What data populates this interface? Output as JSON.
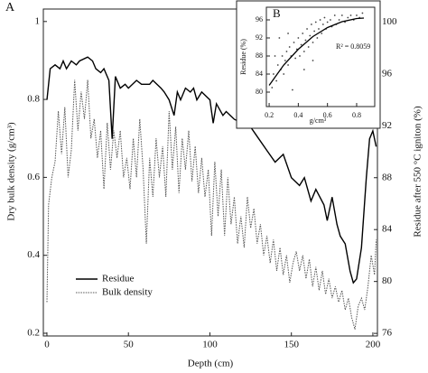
{
  "chart_data": [
    {
      "type": "line",
      "panel_label": "A",
      "xlabel": "Depth (cm)",
      "ylabel": "Dry bulk density (g/cm³)",
      "y2label": "Residue after 550 °C igniton (%)",
      "xlim": [
        -2.2,
        202.8
      ],
      "xticks": [
        0,
        50,
        100,
        150,
        200
      ],
      "ylim": [
        0.193,
        1.032
      ],
      "yticks": [
        0.2,
        0.4,
        0.6,
        0.8,
        1
      ],
      "y2lim": [
        75.8,
        101
      ],
      "y2ticks": [
        76,
        80,
        84,
        88,
        92,
        96,
        100
      ],
      "legend": "lower left",
      "series": [
        {
          "name": "Residue",
          "color": "#000000",
          "line_style": "solid",
          "axis": "y2",
          "x": [
            0,
            2,
            5,
            8,
            10,
            12,
            15,
            18,
            20,
            25,
            28,
            30,
            33,
            35,
            38,
            40,
            42,
            45,
            48,
            50,
            55,
            58,
            60,
            63,
            65,
            70,
            72,
            75,
            78,
            80,
            82,
            85,
            88,
            90,
            92,
            95,
            100,
            102,
            104,
            108,
            110,
            115,
            120,
            125,
            130,
            135,
            140,
            145,
            150,
            155,
            158,
            162,
            165,
            170,
            172,
            175,
            178,
            180,
            183,
            186,
            188,
            190,
            193,
            196,
            198,
            200,
            202
          ],
          "values": [
            94.0,
            96.4,
            96.7,
            96.4,
            97.0,
            96.4,
            97.0,
            96.7,
            97.0,
            97.3,
            97.0,
            96.4,
            96.1,
            96.4,
            95.5,
            91.0,
            95.8,
            94.9,
            95.2,
            94.9,
            95.5,
            95.2,
            95.2,
            95.2,
            95.5,
            94.9,
            94.6,
            94.0,
            92.8,
            94.6,
            94.0,
            94.9,
            94.6,
            94.9,
            94.0,
            94.6,
            94.0,
            92.2,
            93.7,
            92.8,
            93.1,
            92.5,
            92.2,
            91.9,
            91.0,
            90.1,
            89.2,
            89.8,
            88.0,
            87.4,
            88.0,
            86.2,
            87.1,
            85.9,
            84.7,
            86.5,
            84.4,
            83.5,
            82.9,
            80.8,
            79.9,
            80.2,
            82.6,
            88.0,
            91.0,
            91.6,
            90.4
          ]
        },
        {
          "name": "Bulk density",
          "color": "#555555",
          "line_style": "dotted",
          "axis": "y",
          "x": [
            0,
            1,
            3,
            5,
            7,
            9,
            11,
            13,
            15,
            17,
            19,
            21,
            23,
            25,
            27,
            29,
            31,
            33,
            35,
            37,
            39,
            41,
            43,
            45,
            47,
            49,
            51,
            53,
            55,
            57,
            59,
            61,
            63,
            65,
            67,
            69,
            71,
            73,
            75,
            77,
            79,
            81,
            83,
            85,
            87,
            89,
            91,
            93,
            95,
            97,
            99,
            101,
            103,
            105,
            107,
            109,
            111,
            113,
            115,
            117,
            119,
            121,
            123,
            125,
            127,
            129,
            131,
            133,
            135,
            137,
            139,
            141,
            143,
            145,
            147,
            149,
            151,
            153,
            155,
            157,
            159,
            161,
            163,
            165,
            167,
            169,
            171,
            173,
            175,
            177,
            179,
            181,
            183,
            185,
            187,
            189,
            191,
            193,
            195,
            197,
            199,
            201,
            202
          ],
          "values": [
            0.28,
            0.53,
            0.6,
            0.64,
            0.77,
            0.66,
            0.78,
            0.6,
            0.67,
            0.85,
            0.72,
            0.82,
            0.75,
            0.85,
            0.7,
            0.75,
            0.65,
            0.72,
            0.57,
            0.74,
            0.62,
            0.72,
            0.65,
            0.72,
            0.6,
            0.65,
            0.57,
            0.7,
            0.6,
            0.75,
            0.62,
            0.43,
            0.65,
            0.55,
            0.7,
            0.6,
            0.68,
            0.55,
            0.77,
            0.62,
            0.73,
            0.56,
            0.7,
            0.62,
            0.72,
            0.59,
            0.68,
            0.56,
            0.65,
            0.55,
            0.62,
            0.45,
            0.64,
            0.5,
            0.62,
            0.45,
            0.6,
            0.48,
            0.55,
            0.43,
            0.5,
            0.42,
            0.55,
            0.47,
            0.52,
            0.43,
            0.48,
            0.4,
            0.45,
            0.38,
            0.44,
            0.36,
            0.42,
            0.35,
            0.4,
            0.33,
            0.38,
            0.41,
            0.36,
            0.4,
            0.34,
            0.39,
            0.32,
            0.37,
            0.31,
            0.36,
            0.3,
            0.34,
            0.29,
            0.32,
            0.28,
            0.31,
            0.26,
            0.29,
            0.24,
            0.21,
            0.27,
            0.29,
            0.26,
            0.32,
            0.4,
            0.35,
            0.44
          ]
        }
      ]
    },
    {
      "type": "scatter",
      "panel_label": "B",
      "xlabel": "g/cm³",
      "ylabel": "Residue (%)",
      "annotation": "R² = 0.8059",
      "xlim": [
        0.181,
        0.924
      ],
      "xticks": [
        0.2,
        0.4,
        0.6,
        0.8
      ],
      "ylim": [
        76.8,
        98.8
      ],
      "yticks": [
        80,
        84,
        88,
        92,
        96
      ],
      "x": [
        0.22,
        0.23,
        0.25,
        0.26,
        0.28,
        0.29,
        0.3,
        0.31,
        0.32,
        0.33,
        0.34,
        0.35,
        0.36,
        0.37,
        0.38,
        0.39,
        0.4,
        0.41,
        0.42,
        0.43,
        0.44,
        0.45,
        0.46,
        0.47,
        0.48,
        0.49,
        0.5,
        0.51,
        0.52,
        0.53,
        0.54,
        0.55,
        0.56,
        0.57,
        0.58,
        0.59,
        0.6,
        0.62,
        0.63,
        0.65,
        0.66,
        0.68,
        0.7,
        0.72,
        0.74,
        0.76,
        0.78,
        0.8,
        0.82,
        0.84,
        0.27,
        0.33,
        0.24,
        0.44,
        0.5
      ],
      "values": [
        81,
        84,
        82.5,
        86,
        85,
        88,
        84,
        87,
        89,
        86,
        90,
        88,
        80.5,
        91,
        87.5,
        89.5,
        92,
        88,
        90.5,
        93,
        89,
        91.5,
        94,
        90,
        92.5,
        95,
        91,
        93.5,
        95.5,
        92,
        94,
        96,
        93,
        95,
        96.5,
        94,
        95.5,
        96,
        94.5,
        97,
        95,
        96,
        97,
        95.5,
        96.5,
        97,
        96,
        97,
        96.5,
        97.5,
        92,
        93,
        88,
        85,
        87
      ],
      "color": "#444444",
      "fit": {
        "x": [
          0.2,
          0.3,
          0.4,
          0.5,
          0.6,
          0.7,
          0.8,
          0.85
        ],
        "values": [
          81.5,
          86,
          89.5,
          92.3,
          94.3,
          95.6,
          96.3,
          96.4
        ]
      }
    }
  ]
}
